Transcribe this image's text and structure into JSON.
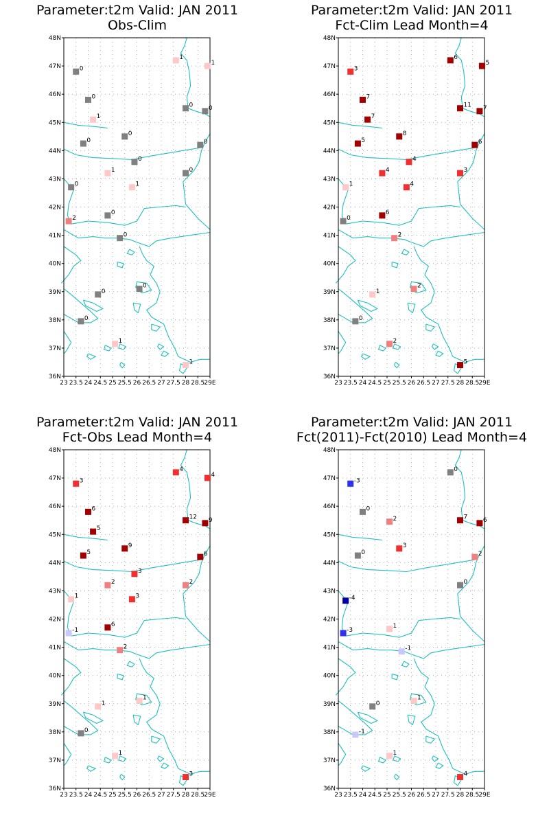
{
  "axes": {
    "lat_ticks": [
      "36N",
      "37N",
      "38N",
      "39N",
      "40N",
      "41N",
      "42N",
      "43N",
      "44N",
      "45N",
      "46N",
      "47N",
      "48N"
    ],
    "lon_ticks": [
      "23",
      "23.5",
      "24",
      "24.5",
      "25",
      "25.5",
      "26",
      "26.5",
      "27",
      "27.5",
      "28",
      "28.5",
      "29E"
    ],
    "lat_range": [
      36,
      48
    ],
    "lon_range": [
      23,
      29
    ]
  },
  "colors": {
    "coastline": "#1fbfbf",
    "zero": "#808080",
    "pos1": "#ffc8c8",
    "pos2": "#f08080",
    "pos3": "#f03030",
    "pos_high": "#a00000",
    "neg1": "#c8c8ff",
    "neg3": "#3030f0",
    "neg4": "#0000a0"
  },
  "chart_data": [
    {
      "type": "station-map",
      "title": "Parameter:t2m Valid: JAN 2011",
      "subtitle": "Obs-Clim",
      "stations": [
        {
          "lon": 23.5,
          "lat": 46.8,
          "v": "0"
        },
        {
          "lon": 24.0,
          "lat": 45.8,
          "v": "0"
        },
        {
          "lon": 24.2,
          "lat": 45.1,
          "v": "1"
        },
        {
          "lon": 23.8,
          "lat": 44.25,
          "v": "0"
        },
        {
          "lon": 25.5,
          "lat": 44.5,
          "v": "0"
        },
        {
          "lon": 25.9,
          "lat": 43.6,
          "v": "0"
        },
        {
          "lon": 27.6,
          "lat": 47.2,
          "v": "1"
        },
        {
          "lon": 28.9,
          "lat": 47.0,
          "v": "1"
        },
        {
          "lon": 28.0,
          "lat": 45.5,
          "v": "0"
        },
        {
          "lon": 28.8,
          "lat": 45.4,
          "v": "0"
        },
        {
          "lon": 28.6,
          "lat": 44.2,
          "v": "0"
        },
        {
          "lon": 28.0,
          "lat": 43.2,
          "v": "0"
        },
        {
          "lon": 23.3,
          "lat": 42.7,
          "v": "0"
        },
        {
          "lon": 24.8,
          "lat": 43.2,
          "v": "1"
        },
        {
          "lon": 25.8,
          "lat": 42.7,
          "v": "1"
        },
        {
          "lon": 23.2,
          "lat": 41.5,
          "v": "2"
        },
        {
          "lon": 24.8,
          "lat": 41.7,
          "v": "0"
        },
        {
          "lon": 25.3,
          "lat": 40.9,
          "v": "0"
        },
        {
          "lon": 24.4,
          "lat": 38.9,
          "v": "0"
        },
        {
          "lon": 26.1,
          "lat": 39.1,
          "v": "0"
        },
        {
          "lon": 23.7,
          "lat": 37.95,
          "v": "0"
        },
        {
          "lon": 25.1,
          "lat": 37.15,
          "v": "1"
        },
        {
          "lon": 28.0,
          "lat": 36.4,
          "v": "1"
        }
      ]
    },
    {
      "type": "station-map",
      "title": "Parameter:t2m Valid: JAN 2011",
      "subtitle": "Fct-Clim Lead Month=4",
      "stations": [
        {
          "lon": 23.5,
          "lat": 46.8,
          "v": "3"
        },
        {
          "lon": 24.0,
          "lat": 45.8,
          "v": "7"
        },
        {
          "lon": 24.2,
          "lat": 45.1,
          "v": "7"
        },
        {
          "lon": 23.8,
          "lat": 44.25,
          "v": "5"
        },
        {
          "lon": 25.5,
          "lat": 44.5,
          "v": "8"
        },
        {
          "lon": 25.9,
          "lat": 43.6,
          "v": "4"
        },
        {
          "lon": 27.6,
          "lat": 47.2,
          "v": "6"
        },
        {
          "lon": 28.9,
          "lat": 47.0,
          "v": "5"
        },
        {
          "lon": 28.0,
          "lat": 45.5,
          "v": "11"
        },
        {
          "lon": 28.8,
          "lat": 45.4,
          "v": "7"
        },
        {
          "lon": 28.6,
          "lat": 44.2,
          "v": "6"
        },
        {
          "lon": 28.0,
          "lat": 43.2,
          "v": "3"
        },
        {
          "lon": 23.3,
          "lat": 42.7,
          "v": "1"
        },
        {
          "lon": 24.8,
          "lat": 43.2,
          "v": "4"
        },
        {
          "lon": 25.8,
          "lat": 42.7,
          "v": "4"
        },
        {
          "lon": 23.2,
          "lat": 41.5,
          "v": "0"
        },
        {
          "lon": 24.8,
          "lat": 41.7,
          "v": "6"
        },
        {
          "lon": 25.3,
          "lat": 40.9,
          "v": "2"
        },
        {
          "lon": 24.4,
          "lat": 38.9,
          "v": "1"
        },
        {
          "lon": 26.1,
          "lat": 39.1,
          "v": "2"
        },
        {
          "lon": 23.7,
          "lat": 37.95,
          "v": "0"
        },
        {
          "lon": 25.1,
          "lat": 37.15,
          "v": "2"
        },
        {
          "lon": 28.0,
          "lat": 36.4,
          "v": "5"
        }
      ]
    },
    {
      "type": "station-map",
      "title": "Parameter:t2m Valid: JAN 2011",
      "subtitle": "Fct-Obs Lead Month=4",
      "stations": [
        {
          "lon": 23.5,
          "lat": 46.8,
          "v": "3"
        },
        {
          "lon": 24.0,
          "lat": 45.8,
          "v": "6"
        },
        {
          "lon": 24.2,
          "lat": 45.1,
          "v": "5"
        },
        {
          "lon": 23.8,
          "lat": 44.25,
          "v": "5"
        },
        {
          "lon": 25.5,
          "lat": 44.5,
          "v": "9"
        },
        {
          "lon": 25.9,
          "lat": 43.6,
          "v": "3"
        },
        {
          "lon": 27.6,
          "lat": 47.2,
          "v": "4"
        },
        {
          "lon": 28.9,
          "lat": 47.0,
          "v": "4"
        },
        {
          "lon": 28.0,
          "lat": 45.5,
          "v": "12"
        },
        {
          "lon": 28.8,
          "lat": 45.4,
          "v": "9"
        },
        {
          "lon": 28.6,
          "lat": 44.2,
          "v": "6"
        },
        {
          "lon": 28.0,
          "lat": 43.2,
          "v": "2"
        },
        {
          "lon": 23.3,
          "lat": 42.7,
          "v": "1"
        },
        {
          "lon": 24.8,
          "lat": 43.2,
          "v": "2"
        },
        {
          "lon": 25.8,
          "lat": 42.7,
          "v": "3"
        },
        {
          "lon": 23.2,
          "lat": 41.5,
          "v": "-1"
        },
        {
          "lon": 24.8,
          "lat": 41.7,
          "v": "6"
        },
        {
          "lon": 25.3,
          "lat": 40.9,
          "v": "2"
        },
        {
          "lon": 24.4,
          "lat": 38.9,
          "v": "1"
        },
        {
          "lon": 26.1,
          "lat": 39.1,
          "v": "1"
        },
        {
          "lon": 23.7,
          "lat": 37.95,
          "v": "0"
        },
        {
          "lon": 25.1,
          "lat": 37.15,
          "v": "1"
        },
        {
          "lon": 28.0,
          "lat": 36.4,
          "v": "3"
        }
      ]
    },
    {
      "type": "station-map",
      "title": "Parameter:t2m Valid: JAN 2011",
      "subtitle": "Fct(2011)-Fct(2010) Lead Month=4",
      "stations": [
        {
          "lon": 23.5,
          "lat": 46.8,
          "v": "-3"
        },
        {
          "lon": 24.0,
          "lat": 45.8,
          "v": "0"
        },
        {
          "lon": 25.1,
          "lat": 45.45,
          "v": "2"
        },
        {
          "lon": 23.8,
          "lat": 44.25,
          "v": "0"
        },
        {
          "lon": 25.5,
          "lat": 44.5,
          "v": "3"
        },
        {
          "lon": 27.6,
          "lat": 47.2,
          "v": "0"
        },
        {
          "lon": 28.0,
          "lat": 45.5,
          "v": "7"
        },
        {
          "lon": 28.8,
          "lat": 45.4,
          "v": "6"
        },
        {
          "lon": 28.6,
          "lat": 44.2,
          "v": "2"
        },
        {
          "lon": 28.0,
          "lat": 43.2,
          "v": "0"
        },
        {
          "lon": 23.3,
          "lat": 42.65,
          "v": "-4"
        },
        {
          "lon": 23.2,
          "lat": 41.5,
          "v": "-3"
        },
        {
          "lon": 25.1,
          "lat": 41.65,
          "v": "1"
        },
        {
          "lon": 25.6,
          "lat": 40.85,
          "v": "-1"
        },
        {
          "lon": 24.4,
          "lat": 38.9,
          "v": "0"
        },
        {
          "lon": 26.1,
          "lat": 39.1,
          "v": "1"
        },
        {
          "lon": 23.7,
          "lat": 37.9,
          "v": "-1"
        },
        {
          "lon": 25.1,
          "lat": 37.15,
          "v": "1"
        },
        {
          "lon": 28.0,
          "lat": 36.4,
          "v": "4"
        }
      ]
    }
  ]
}
